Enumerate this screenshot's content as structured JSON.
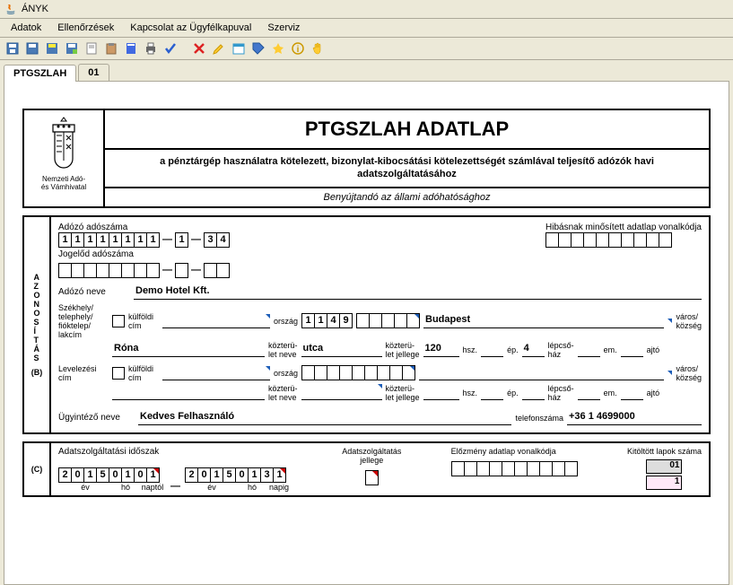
{
  "window": {
    "title": "ÁNYK"
  },
  "menu": {
    "items": [
      "Adatok",
      "Ellenőrzések",
      "Kapcsolat az Ügyfélkapuval",
      "Szerviz"
    ]
  },
  "tabs": {
    "items": [
      "PTGSZLAH",
      "01"
    ],
    "active": 0
  },
  "header": {
    "crest_line1": "Nemzeti Adó-",
    "crest_line2": "és Vámhivatal",
    "title": "PTGSZLAH ADATLAP",
    "subtitle": "a pénztárgép használatra kötelezett, bizonylat-kibocsátási kötelezettségét számlával teljesítő adózók havi adatszolgáltatásához",
    "submit_to": "Benyújtandó az állami adóhatósághoz"
  },
  "sectionB": {
    "vertical_label": "AZONOSÍTÁS",
    "letter": "(B)",
    "adoszam_label": "Adózó adószáma",
    "adoszam_main": [
      "1",
      "1",
      "1",
      "1",
      "1",
      "1",
      "1",
      "1"
    ],
    "adoszam_mid": [
      "1"
    ],
    "adoszam_end": [
      "3",
      "4"
    ],
    "hibas_label": "Hibásnak minősített adatlap vonalkódja",
    "hibas_cells": 10,
    "jogelod_label": "Jogelőd adószáma",
    "jogelod_main": 8,
    "jogelod_mid": 1,
    "jogelod_end": 2,
    "adozo_neve_label": "Adózó neve",
    "adozo_neve": "Demo Hotel Kft.",
    "szekhely_label": "Székhely/\ntelephely/\nfióktelep/\nlakcím",
    "kulfoldi_label": "külföldi\ncím",
    "orszag_label": "ország",
    "irsz": [
      "1",
      "1",
      "4",
      "9"
    ],
    "telepules": "Budapest",
    "varos_label": "város/\nközség",
    "kozterulet": "Róna",
    "kozter_neve_label": "közterü-\nlet neve",
    "kozter_jelleg": "utca",
    "kozter_jelleg_label": "közterü-\nlet jellege",
    "hsz": "120",
    "hsz_label": "hsz.",
    "ep_label": "ép.",
    "lepcsohaz_label": "lépcső-\nház",
    "lepcsohaz": "4",
    "em_label": "em.",
    "ajto_label": "ajtó",
    "levelezesi_label": "Levelezési\ncím",
    "ugyintezno_label": "Ügyintéző neve",
    "ugyintezno": "Kedves Felhasználó",
    "telefon_label": "telefonszáma",
    "telefon": "+36 1 4699000"
  },
  "sectionC": {
    "letter": "(C)",
    "idoszak_label": "Adatszolgáltatási időszak",
    "from": [
      "2",
      "0",
      "1",
      "5",
      "0",
      "1",
      "0",
      "1"
    ],
    "to": [
      "2",
      "0",
      "1",
      "5",
      "0",
      "1",
      "3",
      "1"
    ],
    "ev_label": "év",
    "ho_label": "hó",
    "naptol_label": "naptól",
    "napig_label": "napig",
    "jelleg_label": "Adatszolgáltatás\njellege",
    "elozmeny_label": "Előzmény adatlap vonalkódja",
    "elozmeny_cells": 10,
    "kitoltott_label": "Kitöltött lapok száma",
    "kitoltott_ro": "01",
    "kitoltott_val": "1"
  }
}
